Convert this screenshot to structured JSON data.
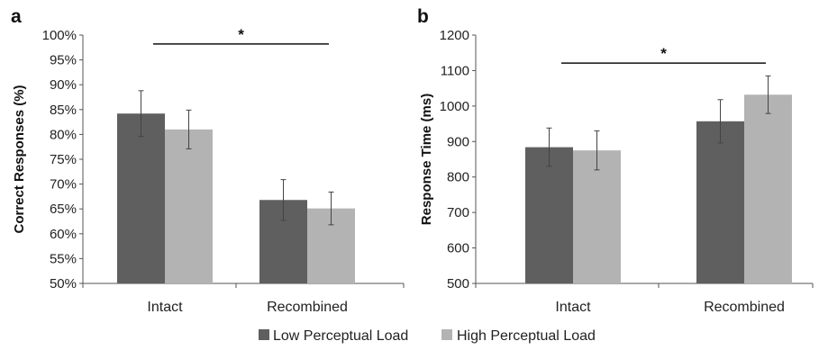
{
  "legend": {
    "low_label": "Low Perceptual Load",
    "high_label": "High Perceptual Load"
  },
  "colors": {
    "low": "#5f5f5f",
    "high": "#b3b3b3"
  },
  "chart_data": [
    {
      "panel": "a",
      "type": "bar",
      "categories": [
        "Intact",
        "Recombined"
      ],
      "ylabel": "Correct Responses (%)",
      "ylim": [
        50,
        100
      ],
      "yticks": [
        50,
        55,
        60,
        65,
        70,
        75,
        80,
        85,
        90,
        95,
        100
      ],
      "tick_suffix": "%",
      "series": [
        {
          "name": "Low Perceptual Load",
          "values": [
            84.2,
            66.8
          ],
          "errors": [
            4.6,
            4.1
          ]
        },
        {
          "name": "High Perceptual Load",
          "values": [
            81.0,
            65.1
          ],
          "errors": [
            3.9,
            3.3
          ]
        }
      ],
      "significance": {
        "label": "*",
        "from_category": 0,
        "to_category": 1,
        "y": 98.2
      }
    },
    {
      "panel": "b",
      "type": "bar",
      "categories": [
        "Intact",
        "Recombined"
      ],
      "ylabel": "Response Time (ms)",
      "ylim": [
        500,
        1200
      ],
      "yticks": [
        500,
        600,
        700,
        800,
        900,
        1000,
        1100,
        1200
      ],
      "tick_suffix": "",
      "series": [
        {
          "name": "Low Perceptual Load",
          "values": [
            884,
            957
          ],
          "errors": [
            54,
            61
          ]
        },
        {
          "name": "High Perceptual Load",
          "values": [
            875,
            1032
          ],
          "errors": [
            55,
            53
          ]
        }
      ],
      "significance": {
        "label": "*",
        "from_category": 0,
        "to_category": 1,
        "y": 1121
      }
    }
  ]
}
